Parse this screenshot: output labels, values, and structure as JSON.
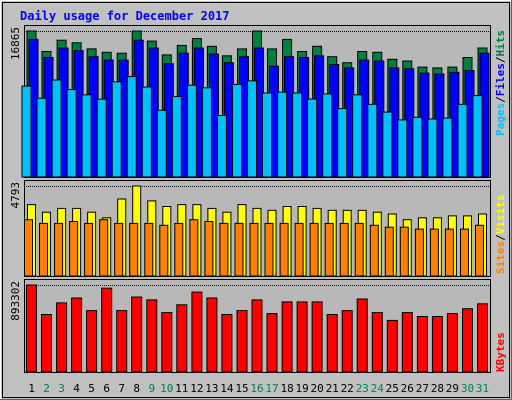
{
  "chart_data": {
    "type": "bar",
    "title": "Daily usage for December 2017",
    "categories": [
      "1",
      "2",
      "3",
      "4",
      "5",
      "6",
      "7",
      "8",
      "9",
      "10",
      "11",
      "12",
      "13",
      "14",
      "15",
      "16",
      "17",
      "18",
      "19",
      "20",
      "21",
      "22",
      "23",
      "24",
      "25",
      "26",
      "27",
      "28",
      "29",
      "30",
      "31"
    ],
    "weekend_days": [
      "2",
      "3",
      "9",
      "10",
      "16",
      "17",
      "23",
      "24",
      "30",
      "31"
    ],
    "panels": [
      {
        "name": "top",
        "ymax": 16865,
        "ymax_label": "16865",
        "series": [
          {
            "name": "Hits",
            "color": "#008040",
            "values": [
              16865,
              14500,
              15800,
              15500,
              14800,
              14400,
              14300,
              16870,
              15700,
              14100,
              15200,
              16000,
              15100,
              14000,
              14800,
              16860,
              14800,
              15900,
              14500,
              15100,
              13900,
              13200,
              14500,
              14400,
              13600,
              13400,
              12700,
              12600,
              12700,
              13800,
              14900
            ]
          },
          {
            "name": "Files",
            "color": "#0000ff",
            "values": [
              15900,
              13800,
              14900,
              14600,
              13900,
              13500,
              13500,
              15800,
              14900,
              13100,
              14300,
              14900,
              14200,
              13200,
              13900,
              14900,
              12800,
              13900,
              13800,
              14000,
              13000,
              12600,
              13500,
              13400,
              12600,
              12500,
              12000,
              11900,
              12100,
              12300,
              14300
            ]
          },
          {
            "name": "Pages",
            "color": "#00c0ff",
            "values": [
              10500,
              9100,
              11200,
              10100,
              9500,
              9000,
              11000,
              11600,
              10400,
              7700,
              9300,
              10600,
              10300,
              7100,
              10700,
              11100,
              9700,
              9800,
              9700,
              9000,
              9600,
              7900,
              9500,
              8400,
              7500,
              6600,
              6900,
              6700,
              6800,
              8400,
              9400
            ]
          }
        ]
      },
      {
        "name": "middle",
        "ymax": 4793,
        "ymax_label": "4793",
        "series": [
          {
            "name": "Visits",
            "color": "#ffff00",
            "values": [
              3800,
              3400,
              3600,
              3600,
              3400,
              3100,
              4100,
              4793,
              4000,
              3700,
              3800,
              3800,
              3600,
              3400,
              3800,
              3600,
              3500,
              3700,
              3700,
              3600,
              3500,
              3500,
              3500,
              3400,
              3300,
              3000,
              3100,
              3100,
              3200,
              3200,
              3300
            ]
          },
          {
            "name": "Sites",
            "color": "#ff8000",
            "values": [
              3000,
              2800,
              2800,
              2900,
              2800,
              3000,
              2800,
              2800,
              2800,
              2700,
              2800,
              3000,
              2900,
              2800,
              2800,
              2800,
              2800,
              2800,
              2800,
              2800,
              2800,
              2800,
              2800,
              2700,
              2600,
              2600,
              2500,
              2500,
              2500,
              2500,
              2700
            ]
          }
        ]
      },
      {
        "name": "bottom",
        "ymax": 893302,
        "ymax_label": "893302",
        "series": [
          {
            "name": "KBytes",
            "color": "#ff0000",
            "values": [
              893302,
              590000,
              710000,
              760000,
              630000,
              860000,
              630000,
              770000,
              740000,
              610000,
              690000,
              820000,
              760000,
              590000,
              630000,
              740000,
              600000,
              720000,
              720000,
              720000,
              590000,
              630000,
              750000,
              610000,
              530000,
              610000,
              570000,
              570000,
              600000,
              650000,
              700000
            ]
          }
        ]
      }
    ],
    "right_labels": [
      {
        "text": "Pages",
        "color": "#00c0ff"
      },
      {
        "text": "Files",
        "color": "#0000ff"
      },
      {
        "text": "Hits",
        "color": "#008040"
      },
      {
        "text": "Sites",
        "color": "#ff8000"
      },
      {
        "text": "Visits",
        "color": "#ffff00"
      },
      {
        "text": "KBytes",
        "color": "#ff0000"
      }
    ],
    "separator": "/",
    "colors": {
      "background": "#c0c0c0",
      "plot": "#b8b8b8",
      "title": "#0000ff",
      "weekday_label": "#000000",
      "weekend_label": "#00805c"
    }
  }
}
